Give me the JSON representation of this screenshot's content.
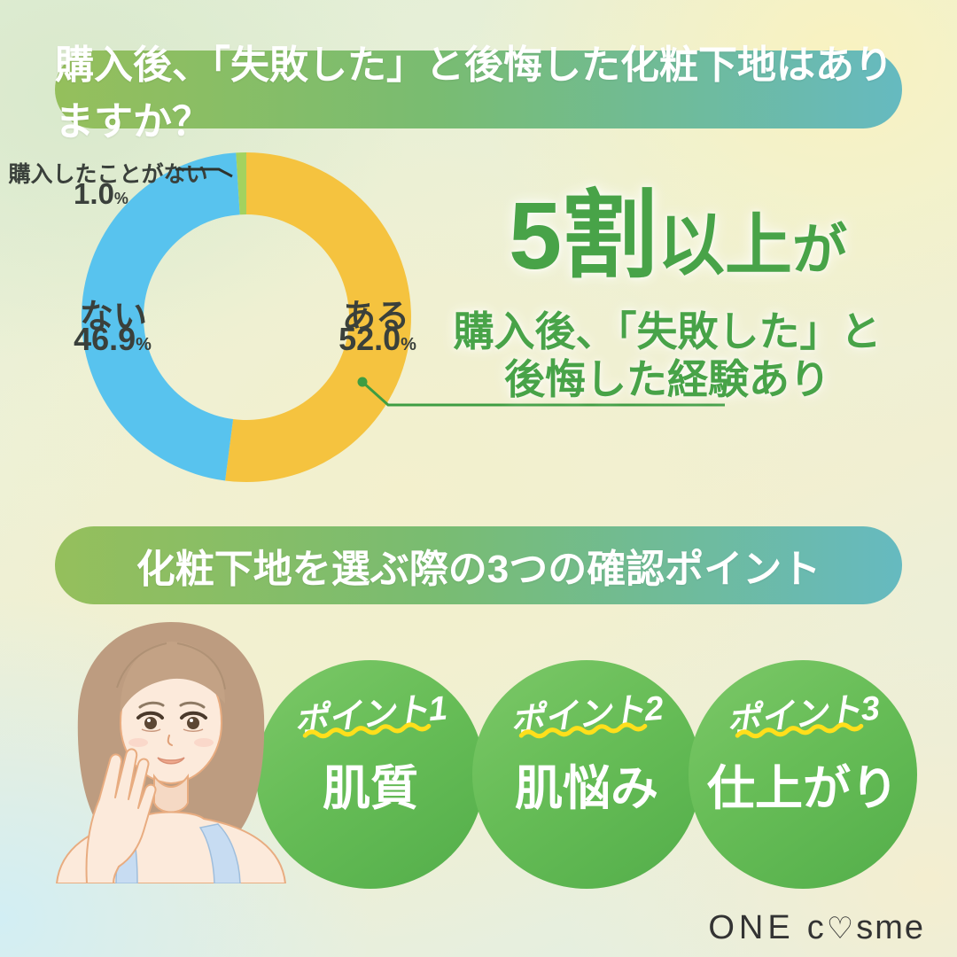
{
  "header_banner": {
    "text": "購入後、「失敗した」と後悔した化粧下地はありますか？"
  },
  "section_banner": {
    "text": "化粧下地を選ぶ際の3つの確認ポイント"
  },
  "chart_data": {
    "type": "pie",
    "donut": true,
    "title": "購入後、「失敗した」と後悔した化粧下地はありますか？",
    "categories": [
      "ある",
      "ない",
      "購入したことがない"
    ],
    "values": [
      52.0,
      46.9,
      1.0
    ],
    "colors": [
      "#F5C33F",
      "#58C3EE",
      "#A3D25F"
    ],
    "start_angle_deg": 0,
    "direction": "clockwise",
    "legend_position": "none",
    "labels": [
      {
        "name": "ある",
        "value": "52.0",
        "unit": "%"
      },
      {
        "name": "ない",
        "value": "46.9",
        "unit": "%"
      },
      {
        "name": "購入したことがない",
        "value": "1.0",
        "unit": "%"
      }
    ]
  },
  "highlight": {
    "part1": "5割",
    "part2": "以上",
    "part3": "が",
    "line2": "購入後、「失敗した」と",
    "line3": "後悔した経験あり"
  },
  "points": {
    "items": [
      {
        "label": "ポイント1",
        "title": "肌質"
      },
      {
        "label": "ポイント2",
        "title": "肌悩み"
      },
      {
        "label": "ポイント3",
        "title": "仕上がり"
      }
    ]
  },
  "logo": {
    "one": "ONE",
    "c": "c",
    "heart": "♡",
    "sme": "sme"
  },
  "colors": {
    "accent_green": "#48A348",
    "banner_left": "#95BF5C",
    "banner_right": "#66BAC0",
    "slice_yes": "#F5C33F",
    "slice_no": "#58C3EE",
    "slice_never": "#A3D25F",
    "leader_line": "#3E9D42",
    "callout_line": "#2E332E"
  }
}
